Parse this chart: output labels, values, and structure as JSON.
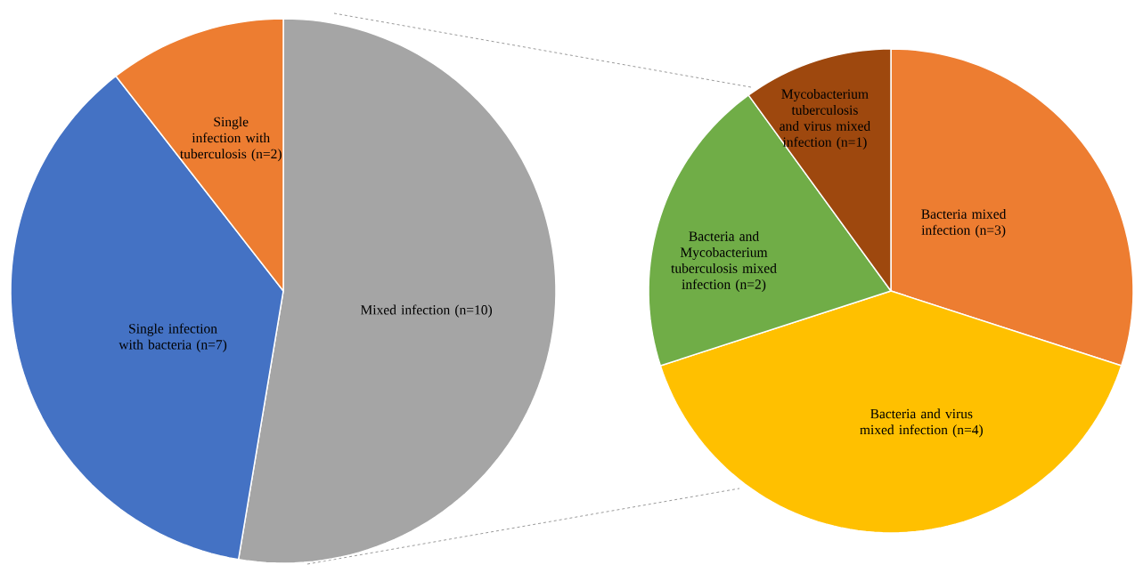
{
  "chart_data": [
    {
      "type": "pie",
      "categories": [
        "Mixed infection (n=10)",
        "Single infection with bacteria (n=7)",
        "Single infection with tuberculosis (n=2)"
      ],
      "values": [
        10,
        7,
        2
      ],
      "colors": [
        "#a5a5a5",
        "#4472c4",
        "#ed7d31"
      ]
    },
    {
      "type": "pie",
      "categories": [
        "Bacteria mixed infection (n=3)",
        "Bacteria and virus mixed infection (n=4)",
        "Bacteria and Mycobacterium tuberculosis mixed infection (n=2)",
        "Mycobacterium tuberculosis and virus mixed infection (n=1)"
      ],
      "values": [
        3,
        4,
        2,
        1
      ],
      "colors": [
        "#ed7d31",
        "#ffc000",
        "#70ad47",
        "#9e480e"
      ]
    }
  ]
}
